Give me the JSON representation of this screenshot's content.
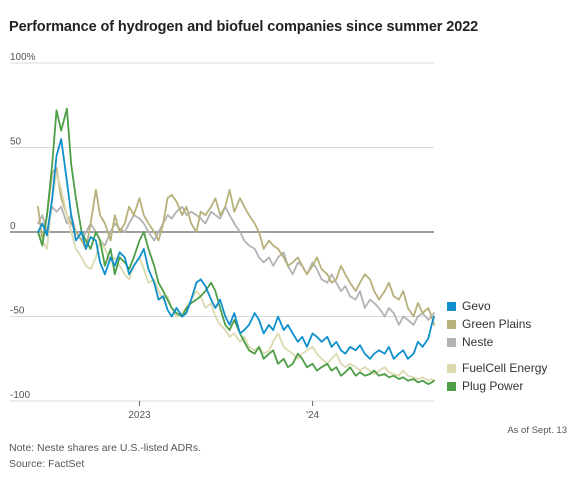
{
  "chart_data": {
    "type": "line",
    "title": "Performance of hydrogen and biofuel companies since summer 2022",
    "y_ticks": [
      {
        "value": 100,
        "label": "100%"
      },
      {
        "value": 50,
        "label": "50"
      },
      {
        "value": 0,
        "label": "0"
      },
      {
        "value": -50,
        "label": "-50"
      },
      {
        "value": -100,
        "label": "-100"
      }
    ],
    "ylim": [
      -100,
      100
    ],
    "xlim": [
      "2022-06-01",
      "2024-09-13"
    ],
    "x_ticks": [
      {
        "value": "2023-01-01",
        "label": "2023"
      },
      {
        "value": "2024-01-01",
        "label": "'24"
      }
    ],
    "grid": "horizontal",
    "legend_position": "right",
    "as_of": "As of Sept. 13",
    "series": [
      {
        "name": "Gevo",
        "color": "#0f8fcb",
        "x": [
          "2022-06-01",
          "2022-06-10",
          "2022-06-20",
          "2022-07-01",
          "2022-07-10",
          "2022-07-20",
          "2022-08-01",
          "2022-08-10",
          "2022-08-20",
          "2022-09-01",
          "2022-09-10",
          "2022-09-20",
          "2022-10-01",
          "2022-10-10",
          "2022-10-20",
          "2022-11-01",
          "2022-11-10",
          "2022-11-20",
          "2022-12-01",
          "2022-12-10",
          "2022-12-20",
          "2023-01-01",
          "2023-01-10",
          "2023-01-20",
          "2023-02-01",
          "2023-02-10",
          "2023-02-20",
          "2023-03-01",
          "2023-03-10",
          "2023-03-20",
          "2023-04-01",
          "2023-04-10",
          "2023-04-20",
          "2023-05-01",
          "2023-05-10",
          "2023-05-20",
          "2023-06-01",
          "2023-06-10",
          "2023-06-20",
          "2023-07-01",
          "2023-07-10",
          "2023-07-20",
          "2023-08-01",
          "2023-08-10",
          "2023-08-20",
          "2023-09-01",
          "2023-09-10",
          "2023-09-20",
          "2023-10-01",
          "2023-10-10",
          "2023-10-20",
          "2023-11-01",
          "2023-11-10",
          "2023-11-20",
          "2023-12-01",
          "2023-12-10",
          "2023-12-20",
          "2024-01-01",
          "2024-01-10",
          "2024-01-20",
          "2024-02-01",
          "2024-02-10",
          "2024-02-20",
          "2024-03-01",
          "2024-03-10",
          "2024-03-20",
          "2024-04-01",
          "2024-04-10",
          "2024-04-20",
          "2024-05-01",
          "2024-05-10",
          "2024-05-20",
          "2024-06-01",
          "2024-06-10",
          "2024-06-20",
          "2024-07-01",
          "2024-07-10",
          "2024-07-20",
          "2024-08-01",
          "2024-08-10",
          "2024-08-20",
          "2024-09-01",
          "2024-09-08",
          "2024-09-13"
        ],
        "values": [
          0,
          5,
          -2,
          20,
          45,
          55,
          30,
          10,
          -5,
          0,
          -10,
          -3,
          -5,
          -18,
          -25,
          -15,
          -20,
          -12,
          -15,
          -25,
          -20,
          -15,
          -10,
          -22,
          -30,
          -40,
          -38,
          -46,
          -50,
          -45,
          -50,
          -48,
          -40,
          -30,
          -28,
          -32,
          -40,
          -45,
          -40,
          -50,
          -55,
          -48,
          -60,
          -58,
          -55,
          -48,
          -52,
          -60,
          -55,
          -58,
          -50,
          -58,
          -55,
          -60,
          -65,
          -62,
          -68,
          -60,
          -62,
          -65,
          -62,
          -68,
          -65,
          -70,
          -72,
          -68,
          -70,
          -67,
          -72,
          -75,
          -72,
          -70,
          -72,
          -68,
          -75,
          -72,
          -70,
          -75,
          -72,
          -65,
          -68,
          -63,
          -55,
          -50
        ]
      },
      {
        "name": "Green Plains",
        "color": "#b8b07a",
        "x": [
          "2022-06-01",
          "2022-06-10",
          "2022-06-20",
          "2022-07-01",
          "2022-07-10",
          "2022-07-20",
          "2022-08-01",
          "2022-08-10",
          "2022-08-20",
          "2022-09-01",
          "2022-09-10",
          "2022-09-20",
          "2022-10-01",
          "2022-10-10",
          "2022-10-20",
          "2022-11-01",
          "2022-11-10",
          "2022-11-20",
          "2022-12-01",
          "2022-12-10",
          "2022-12-20",
          "2023-01-01",
          "2023-01-10",
          "2023-01-20",
          "2023-02-01",
          "2023-02-10",
          "2023-02-20",
          "2023-03-01",
          "2023-03-10",
          "2023-03-20",
          "2023-04-01",
          "2023-04-10",
          "2023-04-20",
          "2023-05-01",
          "2023-05-10",
          "2023-05-20",
          "2023-06-01",
          "2023-06-10",
          "2023-06-20",
          "2023-07-01",
          "2023-07-10",
          "2023-07-20",
          "2023-08-01",
          "2023-08-10",
          "2023-08-20",
          "2023-09-01",
          "2023-09-10",
          "2023-09-20",
          "2023-10-01",
          "2023-10-10",
          "2023-10-20",
          "2023-11-01",
          "2023-11-10",
          "2023-11-20",
          "2023-12-01",
          "2023-12-10",
          "2023-12-20",
          "2024-01-01",
          "2024-01-10",
          "2024-01-20",
          "2024-02-01",
          "2024-02-10",
          "2024-02-20",
          "2024-03-01",
          "2024-03-10",
          "2024-03-20",
          "2024-04-01",
          "2024-04-10",
          "2024-04-20",
          "2024-05-01",
          "2024-05-10",
          "2024-05-20",
          "2024-06-01",
          "2024-06-10",
          "2024-06-20",
          "2024-07-01",
          "2024-07-10",
          "2024-07-20",
          "2024-08-01",
          "2024-08-10",
          "2024-08-20",
          "2024-09-01",
          "2024-09-08",
          "2024-09-13"
        ],
        "values": [
          15,
          -5,
          10,
          35,
          38,
          20,
          10,
          5,
          0,
          -5,
          -10,
          5,
          25,
          10,
          5,
          -5,
          10,
          0,
          5,
          15,
          10,
          20,
          10,
          5,
          0,
          -5,
          5,
          20,
          22,
          18,
          10,
          15,
          5,
          0,
          12,
          10,
          15,
          20,
          10,
          15,
          25,
          12,
          20,
          15,
          10,
          5,
          0,
          -10,
          -5,
          -8,
          -10,
          -15,
          -20,
          -18,
          -15,
          -20,
          -25,
          -20,
          -15,
          -22,
          -25,
          -30,
          -28,
          -20,
          -25,
          -30,
          -35,
          -30,
          -25,
          -28,
          -35,
          -40,
          -35,
          -30,
          -38,
          -40,
          -35,
          -45,
          -50,
          -42,
          -48,
          -45,
          -50,
          -55
        ]
      },
      {
        "name": "Neste",
        "color": "#b3b3b3",
        "x": [
          "2022-06-01",
          "2022-06-10",
          "2022-06-20",
          "2022-07-01",
          "2022-07-10",
          "2022-07-20",
          "2022-08-01",
          "2022-08-10",
          "2022-08-20",
          "2022-09-01",
          "2022-09-10",
          "2022-09-20",
          "2022-10-01",
          "2022-10-10",
          "2022-10-20",
          "2022-11-01",
          "2022-11-10",
          "2022-11-20",
          "2022-12-01",
          "2022-12-10",
          "2022-12-20",
          "2023-01-01",
          "2023-01-10",
          "2023-01-20",
          "2023-02-01",
          "2023-02-10",
          "2023-02-20",
          "2023-03-01",
          "2023-03-10",
          "2023-03-20",
          "2023-04-01",
          "2023-04-10",
          "2023-04-20",
          "2023-05-01",
          "2023-05-10",
          "2023-05-20",
          "2023-06-01",
          "2023-06-10",
          "2023-06-20",
          "2023-07-01",
          "2023-07-10",
          "2023-07-20",
          "2023-08-01",
          "2023-08-10",
          "2023-08-20",
          "2023-09-01",
          "2023-09-10",
          "2023-09-20",
          "2023-10-01",
          "2023-10-10",
          "2023-10-20",
          "2023-11-01",
          "2023-11-10",
          "2023-11-20",
          "2023-12-01",
          "2023-12-10",
          "2023-12-20",
          "2024-01-01",
          "2024-01-10",
          "2024-01-20",
          "2024-02-01",
          "2024-02-10",
          "2024-02-20",
          "2024-03-01",
          "2024-03-10",
          "2024-03-20",
          "2024-04-01",
          "2024-04-10",
          "2024-04-20",
          "2024-05-01",
          "2024-05-10",
          "2024-05-20",
          "2024-06-01",
          "2024-06-10",
          "2024-06-20",
          "2024-07-01",
          "2024-07-10",
          "2024-07-20",
          "2024-08-01",
          "2024-08-10",
          "2024-08-20",
          "2024-09-01",
          "2024-09-08",
          "2024-09-13"
        ],
        "values": [
          5,
          10,
          0,
          15,
          12,
          15,
          5,
          10,
          0,
          -5,
          0,
          5,
          0,
          -5,
          -8,
          0,
          5,
          2,
          0,
          5,
          10,
          8,
          5,
          0,
          -5,
          0,
          5,
          10,
          8,
          12,
          15,
          10,
          12,
          10,
          8,
          5,
          12,
          10,
          8,
          15,
          10,
          5,
          0,
          -5,
          -8,
          -10,
          -15,
          -18,
          -15,
          -20,
          -15,
          -12,
          -20,
          -25,
          -18,
          -20,
          -25,
          -18,
          -22,
          -28,
          -30,
          -25,
          -30,
          -35,
          -32,
          -38,
          -40,
          -35,
          -45,
          -40,
          -42,
          -45,
          -50,
          -45,
          -48,
          -55,
          -50,
          -52,
          -55,
          -50,
          -48,
          -52,
          -50,
          -48
        ]
      },
      {
        "name": "FuelCell Energy",
        "color": "#dcd9b0",
        "x": [
          "2022-06-01",
          "2022-06-10",
          "2022-06-20",
          "2022-07-01",
          "2022-07-10",
          "2022-07-20",
          "2022-08-01",
          "2022-08-10",
          "2022-08-20",
          "2022-09-01",
          "2022-09-10",
          "2022-09-20",
          "2022-10-01",
          "2022-10-10",
          "2022-10-20",
          "2022-11-01",
          "2022-11-10",
          "2022-11-20",
          "2022-12-01",
          "2022-12-10",
          "2022-12-20",
          "2023-01-01",
          "2023-01-10",
          "2023-01-20",
          "2023-02-01",
          "2023-02-10",
          "2023-02-20",
          "2023-03-01",
          "2023-03-10",
          "2023-03-20",
          "2023-04-01",
          "2023-04-10",
          "2023-04-20",
          "2023-05-01",
          "2023-05-10",
          "2023-05-20",
          "2023-06-01",
          "2023-06-10",
          "2023-06-20",
          "2023-07-01",
          "2023-07-10",
          "2023-07-20",
          "2023-08-01",
          "2023-08-10",
          "2023-08-20",
          "2023-09-01",
          "2023-09-10",
          "2023-09-20",
          "2023-10-01",
          "2023-10-10",
          "2023-10-20",
          "2023-11-01",
          "2023-11-10",
          "2023-11-20",
          "2023-12-01",
          "2023-12-10",
          "2023-12-20",
          "2024-01-01",
          "2024-01-10",
          "2024-01-20",
          "2024-02-01",
          "2024-02-10",
          "2024-02-20",
          "2024-03-01",
          "2024-03-10",
          "2024-03-20",
          "2024-04-01",
          "2024-04-10",
          "2024-04-20",
          "2024-05-01",
          "2024-05-10",
          "2024-05-20",
          "2024-06-01",
          "2024-06-10",
          "2024-06-20",
          "2024-07-01",
          "2024-07-10",
          "2024-07-20",
          "2024-08-01",
          "2024-08-10",
          "2024-08-20",
          "2024-09-01",
          "2024-09-08",
          "2024-09-13"
        ],
        "values": [
          0,
          -5,
          -10,
          20,
          35,
          25,
          10,
          0,
          -10,
          -15,
          -20,
          -22,
          -15,
          -5,
          -10,
          -18,
          -15,
          -20,
          -25,
          -28,
          -20,
          -15,
          -22,
          -30,
          -28,
          -35,
          -40,
          -38,
          -45,
          -50,
          -48,
          -45,
          -40,
          -35,
          -38,
          -45,
          -42,
          -50,
          -55,
          -58,
          -62,
          -60,
          -65,
          -62,
          -68,
          -70,
          -68,
          -72,
          -70,
          -65,
          -60,
          -68,
          -70,
          -72,
          -75,
          -72,
          -70,
          -68,
          -72,
          -75,
          -78,
          -75,
          -72,
          -78,
          -80,
          -78,
          -80,
          -82,
          -80,
          -82,
          -84,
          -82,
          -80,
          -83,
          -84,
          -85,
          -82,
          -85,
          -86,
          -87,
          -86,
          -88,
          -87,
          -88
        ]
      },
      {
        "name": "Plug Power",
        "color": "#4d9e46",
        "x": [
          "2022-06-01",
          "2022-06-10",
          "2022-06-20",
          "2022-07-01",
          "2022-07-10",
          "2022-07-20",
          "2022-08-01",
          "2022-08-10",
          "2022-08-20",
          "2022-09-01",
          "2022-09-10",
          "2022-09-20",
          "2022-10-01",
          "2022-10-10",
          "2022-10-20",
          "2022-11-01",
          "2022-11-10",
          "2022-11-20",
          "2022-12-01",
          "2022-12-10",
          "2022-12-20",
          "2023-01-01",
          "2023-01-10",
          "2023-01-20",
          "2023-02-01",
          "2023-02-10",
          "2023-02-20",
          "2023-03-01",
          "2023-03-10",
          "2023-03-20",
          "2023-04-01",
          "2023-04-10",
          "2023-04-20",
          "2023-05-01",
          "2023-05-10",
          "2023-05-20",
          "2023-06-01",
          "2023-06-10",
          "2023-06-20",
          "2023-07-01",
          "2023-07-10",
          "2023-07-20",
          "2023-08-01",
          "2023-08-10",
          "2023-08-20",
          "2023-09-01",
          "2023-09-10",
          "2023-09-20",
          "2023-10-01",
          "2023-10-10",
          "2023-10-20",
          "2023-11-01",
          "2023-11-10",
          "2023-11-20",
          "2023-12-01",
          "2023-12-10",
          "2023-12-20",
          "2024-01-01",
          "2024-01-10",
          "2024-01-20",
          "2024-02-01",
          "2024-02-10",
          "2024-02-20",
          "2024-03-01",
          "2024-03-10",
          "2024-03-20",
          "2024-04-01",
          "2024-04-10",
          "2024-04-20",
          "2024-05-01",
          "2024-05-10",
          "2024-05-20",
          "2024-06-01",
          "2024-06-10",
          "2024-06-20",
          "2024-07-01",
          "2024-07-10",
          "2024-07-20",
          "2024-08-01",
          "2024-08-10",
          "2024-08-20",
          "2024-09-01",
          "2024-09-08",
          "2024-09-13"
        ],
        "values": [
          0,
          -8,
          10,
          40,
          72,
          60,
          73,
          40,
          20,
          0,
          -5,
          -10,
          0,
          -5,
          -20,
          -10,
          -25,
          -15,
          -18,
          -22,
          -15,
          -5,
          0,
          -10,
          -20,
          -30,
          -35,
          -40,
          -45,
          -48,
          -50,
          -45,
          -42,
          -40,
          -38,
          -35,
          -30,
          -35,
          -45,
          -55,
          -58,
          -52,
          -60,
          -65,
          -70,
          -72,
          -68,
          -75,
          -72,
          -70,
          -78,
          -75,
          -80,
          -78,
          -72,
          -75,
          -80,
          -78,
          -82,
          -80,
          -78,
          -82,
          -80,
          -85,
          -83,
          -80,
          -85,
          -83,
          -85,
          -84,
          -82,
          -85,
          -84,
          -86,
          -85,
          -87,
          -86,
          -88,
          -87,
          -89,
          -88,
          -90,
          -89,
          -88
        ]
      }
    ]
  },
  "footer": {
    "note": "Note: Neste shares are U.S.-listed ADRs.",
    "source": "Source: FactSet"
  }
}
